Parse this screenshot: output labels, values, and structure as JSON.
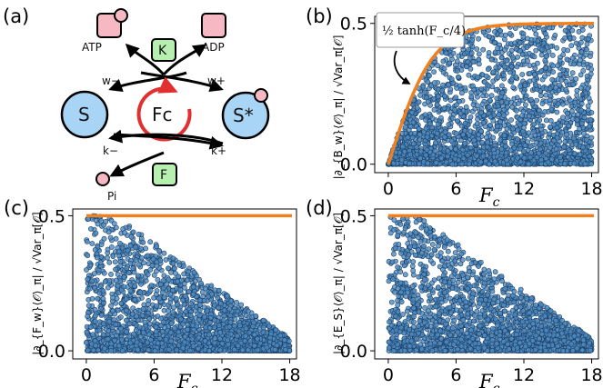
{
  "panels": {
    "a": "(a)",
    "b": "(b)",
    "c": "(c)",
    "d": "(d)"
  },
  "diagram": {
    "left_state": "S",
    "right_state": "S*",
    "center": "Fc",
    "top_box": "K",
    "bottom_box": "F",
    "atp": "ATP",
    "adp": "ADP",
    "pi": "Pi",
    "w_minus": "w−",
    "w_plus": "w+",
    "k_minus": "k−",
    "k_plus": "k+",
    "colors": {
      "state": "#a8d4f5",
      "box": "#b7efb0",
      "pink": "#f6b8c2",
      "arrow_red": "#e03030"
    }
  },
  "chart_data": [
    {
      "id": "b",
      "type": "scatter",
      "xlabel": "F_c",
      "ylabel": "|∂_{B_w}⟨𝒪⟩_π| / √Var_π[𝒪]",
      "xlim": [
        -1.2,
        18.6
      ],
      "ylim": [
        -0.03,
        0.525
      ],
      "xticks": [
        0,
        6,
        12,
        18
      ],
      "yticks": [
        0.0,
        0.5
      ],
      "ytick_labels": [
        "0.0",
        "0.5"
      ],
      "annotation": "½ tanh(F_c/4)",
      "bound": "0.5*tanh(x/4)",
      "points": {
        "n": 2400,
        "envelope": "0.5*tanh(x/4)",
        "density": "bottom-heavy"
      },
      "colors": {
        "points": "#4f8bbf",
        "edge": "#1c3f66",
        "bound": "#f07f1e"
      }
    },
    {
      "id": "c",
      "type": "scatter",
      "xlabel": "F_c",
      "ylabel": "|∂_{F_w}⟨𝒪⟩_π| / √Var_π[𝒪]",
      "xlim": [
        -1.2,
        18.6
      ],
      "ylim": [
        -0.03,
        0.525
      ],
      "xticks": [
        0,
        6,
        12,
        18
      ],
      "yticks": [
        0.0,
        0.5
      ],
      "ytick_labels": [
        "0.0",
        "0.5"
      ],
      "bound": 0.5,
      "points": {
        "n": 2400,
        "envelope": "decreasing from 0.5 to 0 over F_c 0–18",
        "density": "bottom-heavy"
      },
      "colors": {
        "points": "#4f8bbf",
        "edge": "#1c3f66",
        "bound": "#f07f1e"
      }
    },
    {
      "id": "d",
      "type": "scatter",
      "xlabel": "F_c",
      "ylabel": "|∂_{E_S}⟨𝒪⟩_π| / √Var_π[𝒪]",
      "xlim": [
        -1.2,
        18.6
      ],
      "ylim": [
        -0.03,
        0.525
      ],
      "xticks": [
        0,
        6,
        12,
        18
      ],
      "yticks": [
        0.0,
        0.5
      ],
      "ytick_labels": [
        "0.0",
        "0.5"
      ],
      "bound": 0.5,
      "points": {
        "n": 2400,
        "envelope": "decreasing from 0.5 to 0 over F_c 0–18",
        "density": "bottom-heavy"
      },
      "colors": {
        "points": "#4f8bbf",
        "edge": "#1c3f66",
        "bound": "#f07f1e"
      }
    }
  ]
}
